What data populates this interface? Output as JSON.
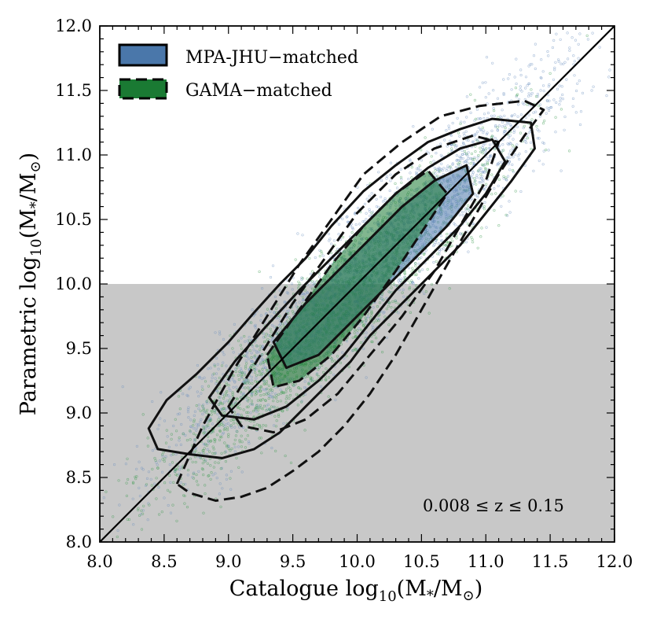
{
  "chart_data": {
    "type": "scatter",
    "xlabel_main": "Catalogue log",
    "ylabel_main": "Parametric log",
    "label_subscript": "10",
    "label_quantity": "(M",
    "label_star_sub": "*",
    "label_slash": "/M",
    "label_sun_sub": "⊙",
    "label_close": ")",
    "xlim": [
      8.0,
      12.0
    ],
    "ylim": [
      8.0,
      12.0
    ],
    "x_ticks": [
      8.0,
      8.5,
      9.0,
      9.5,
      10.0,
      10.5,
      11.0,
      11.5,
      12.0
    ],
    "y_ticks": [
      8.0,
      8.5,
      9.0,
      9.5,
      10.0,
      10.5,
      11.0,
      11.5,
      12.0
    ],
    "x_tick_labels": [
      "8.0",
      "8.5",
      "9.0",
      "9.5",
      "10.0",
      "10.5",
      "11.0",
      "11.5",
      "12.0"
    ],
    "y_tick_labels": [
      "8.0",
      "8.5",
      "9.0",
      "9.5",
      "10.0",
      "10.5",
      "11.0",
      "11.5",
      "12.0"
    ],
    "shaded_region": {
      "y_from": 8.0,
      "y_to": 10.0,
      "color": "#c8c8c8"
    },
    "one_to_one_line": {
      "from": [
        8.0,
        8.0
      ],
      "to": [
        12.0,
        12.0
      ]
    },
    "annotation": "0.008 ≤ z ≤ 0.15",
    "series": [
      {
        "name": "MPA-JHU−matched",
        "color": "#4a77aa",
        "point_color": "#6c8fbf",
        "linestyle": "solid",
        "contours": [
          [
            [
              8.38,
              8.88
            ],
            [
              8.52,
              9.1
            ],
            [
              8.75,
              9.3
            ],
            [
              9.0,
              9.55
            ],
            [
              9.2,
              9.78
            ],
            [
              9.4,
              10.0
            ],
            [
              9.6,
              10.2
            ],
            [
              9.8,
              10.45
            ],
            [
              10.05,
              10.72
            ],
            [
              10.3,
              10.92
            ],
            [
              10.55,
              11.1
            ],
            [
              10.8,
              11.2
            ],
            [
              11.05,
              11.28
            ],
            [
              11.35,
              11.25
            ],
            [
              11.38,
              11.05
            ],
            [
              11.2,
              10.8
            ],
            [
              11.0,
              10.55
            ],
            [
              10.8,
              10.3
            ],
            [
              10.55,
              10.05
            ],
            [
              10.3,
              9.8
            ],
            [
              10.1,
              9.6
            ],
            [
              9.95,
              9.4
            ],
            [
              9.8,
              9.25
            ],
            [
              9.6,
              9.05
            ],
            [
              9.4,
              8.85
            ],
            [
              9.2,
              8.72
            ],
            [
              8.95,
              8.65
            ],
            [
              8.7,
              8.68
            ],
            [
              8.45,
              8.72
            ]
          ],
          [
            [
              8.85,
              9.12
            ],
            [
              9.05,
              9.4
            ],
            [
              9.3,
              9.68
            ],
            [
              9.55,
              9.95
            ],
            [
              9.8,
              10.2
            ],
            [
              10.05,
              10.45
            ],
            [
              10.3,
              10.7
            ],
            [
              10.55,
              10.9
            ],
            [
              10.8,
              11.05
            ],
            [
              11.05,
              11.12
            ],
            [
              11.15,
              10.95
            ],
            [
              11.0,
              10.7
            ],
            [
              10.8,
              10.45
            ],
            [
              10.55,
              10.2
            ],
            [
              10.3,
              9.95
            ],
            [
              10.1,
              9.7
            ],
            [
              9.9,
              9.45
            ],
            [
              9.7,
              9.25
            ],
            [
              9.45,
              9.05
            ],
            [
              9.2,
              8.95
            ],
            [
              8.95,
              8.98
            ]
          ],
          [
            [
              9.35,
              9.55
            ],
            [
              9.6,
              9.85
            ],
            [
              9.85,
              10.1
            ],
            [
              10.1,
              10.35
            ],
            [
              10.35,
              10.6
            ],
            [
              10.6,
              10.8
            ],
            [
              10.85,
              10.92
            ],
            [
              10.9,
              10.7
            ],
            [
              10.7,
              10.45
            ],
            [
              10.45,
              10.2
            ],
            [
              10.2,
              9.95
            ],
            [
              9.95,
              9.7
            ],
            [
              9.7,
              9.45
            ],
            [
              9.45,
              9.35
            ]
          ]
        ]
      },
      {
        "name": "GAMA−matched",
        "color": "#1a7a33",
        "point_color": "#3a9a4e",
        "linestyle": "dashed",
        "contours": [
          [
            [
              8.6,
              8.45
            ],
            [
              8.8,
              8.9
            ],
            [
              9.05,
              9.35
            ],
            [
              9.3,
              9.75
            ],
            [
              9.55,
              10.15
            ],
            [
              9.8,
              10.5
            ],
            [
              10.05,
              10.85
            ],
            [
              10.35,
              11.1
            ],
            [
              10.65,
              11.3
            ],
            [
              10.95,
              11.38
            ],
            [
              11.3,
              11.42
            ],
            [
              11.45,
              11.35
            ],
            [
              11.3,
              11.15
            ],
            [
              11.1,
              10.85
            ],
            [
              10.9,
              10.5
            ],
            [
              10.7,
              10.15
            ],
            [
              10.5,
              9.8
            ],
            [
              10.3,
              9.45
            ],
            [
              10.1,
              9.15
            ],
            [
              9.9,
              8.9
            ],
            [
              9.7,
              8.7
            ],
            [
              9.5,
              8.55
            ],
            [
              9.3,
              8.42
            ],
            [
              9.1,
              8.35
            ],
            [
              8.9,
              8.32
            ],
            [
              8.7,
              8.38
            ]
          ],
          [
            [
              9.0,
              9.05
            ],
            [
              9.25,
              9.45
            ],
            [
              9.5,
              9.85
            ],
            [
              9.75,
              10.2
            ],
            [
              10.0,
              10.55
            ],
            [
              10.3,
              10.85
            ],
            [
              10.6,
              11.05
            ],
            [
              10.9,
              11.15
            ],
            [
              11.1,
              11.1
            ],
            [
              11.0,
              10.8
            ],
            [
              10.8,
              10.45
            ],
            [
              10.6,
              10.1
            ],
            [
              10.35,
              9.75
            ],
            [
              10.1,
              9.45
            ],
            [
              9.85,
              9.15
            ],
            [
              9.6,
              8.95
            ],
            [
              9.35,
              8.85
            ],
            [
              9.1,
              8.9
            ]
          ],
          [
            [
              9.3,
              9.45
            ],
            [
              9.55,
              9.8
            ],
            [
              9.8,
              10.15
            ],
            [
              10.05,
              10.45
            ],
            [
              10.3,
              10.7
            ],
            [
              10.55,
              10.88
            ],
            [
              10.7,
              10.7
            ],
            [
              10.5,
              10.4
            ],
            [
              10.3,
              10.1
            ],
            [
              10.05,
              9.75
            ],
            [
              9.8,
              9.45
            ],
            [
              9.55,
              9.25
            ],
            [
              9.35,
              9.2
            ]
          ]
        ]
      }
    ]
  }
}
